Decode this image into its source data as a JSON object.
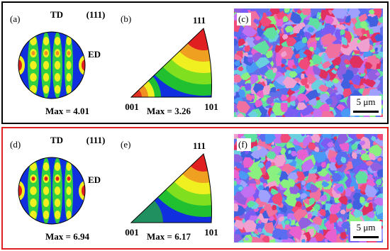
{
  "rows": [
    {
      "pole_figure": {
        "label": "(a)",
        "td": "TD",
        "plane": "(111)",
        "ed": "ED",
        "max": "Max = 4.01"
      },
      "ipf": {
        "label": "(b)",
        "top": "111",
        "left": "001",
        "right": "101",
        "max": "Max = 3.26"
      },
      "map": {
        "label": "(c)",
        "scale": "5 μm"
      }
    },
    {
      "pole_figure": {
        "label": "(d)",
        "td": "TD",
        "plane": "(111)",
        "ed": "ED",
        "max": "Max = 6.94"
      },
      "ipf": {
        "label": "(e)",
        "top": "111",
        "left": "001",
        "right": "101",
        "max": "Max = 6.17"
      },
      "map": {
        "label": "(f)",
        "scale": "5 μm"
      }
    }
  ]
}
